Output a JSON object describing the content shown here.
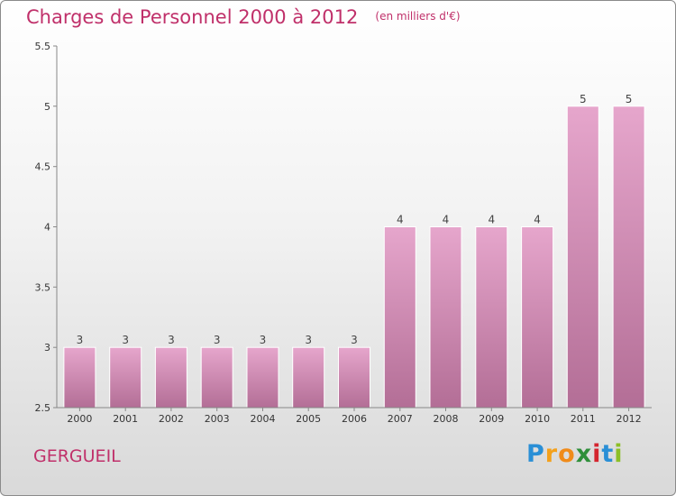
{
  "title": "Charges de Personnel 2000 à 2012",
  "subtitle": "(en milliers d'€)",
  "commune": "GERGUEIL",
  "brand": {
    "letters": [
      "P",
      "r",
      "o",
      "x",
      "i",
      "t",
      "i"
    ],
    "colors": [
      "#2a8fd6",
      "#f4a11b",
      "#f08b1a",
      "#2f8f3a",
      "#d4252f",
      "#2a8fd6",
      "#8cbf26"
    ]
  },
  "colors": {
    "accent": "#c0306a",
    "bar_top": "#e6a6cc",
    "bar_bottom": "#b36e96",
    "axis": "#888888"
  },
  "chart_data": {
    "type": "bar",
    "categories": [
      "2000",
      "2001",
      "2002",
      "2003",
      "2004",
      "2005",
      "2006",
      "2007",
      "2008",
      "2009",
      "2010",
      "2011",
      "2012"
    ],
    "values": [
      3,
      3,
      3,
      3,
      3,
      3,
      3,
      4,
      4,
      4,
      4,
      5,
      5
    ],
    "data_labels": [
      "3",
      "3",
      "3",
      "3",
      "3",
      "3",
      "3",
      "4",
      "4",
      "4",
      "4",
      "5",
      "5"
    ],
    "yticks": [
      "2.5",
      "3",
      "3.5",
      "4",
      "4.5",
      "5",
      "5.5"
    ],
    "ylim": [
      2.5,
      5.5
    ],
    "grid": false,
    "title": "Charges de Personnel 2000 à 2012",
    "xlabel": "",
    "ylabel": ""
  }
}
